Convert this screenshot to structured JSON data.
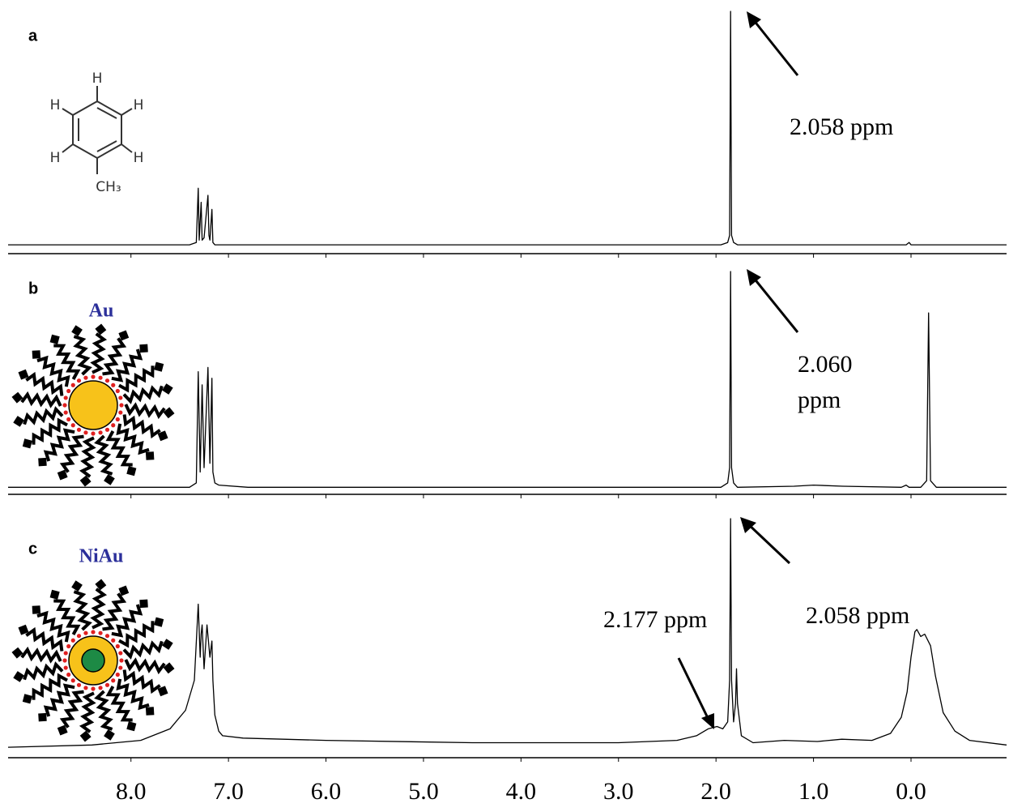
{
  "chart_data": [
    {
      "type": "line",
      "panel_label": "a",
      "molecule": {
        "atoms": [
          "H",
          "H",
          "H",
          "H",
          "H",
          "CH₃"
        ]
      },
      "annotations": [
        "2.058 ppm"
      ],
      "x": [
        9.26,
        7.4,
        7.33,
        7.31,
        7.3,
        7.28,
        7.27,
        7.25,
        7.21,
        7.2,
        7.19,
        7.17,
        7.16,
        7.14,
        7.1,
        1.95,
        1.88,
        1.86,
        1.85,
        1.84,
        1.82,
        1.78,
        0.05,
        0.02,
        0.0,
        -0.98
      ],
      "series": [
        {
          "color": "#000000",
          "values": [
            1,
            1,
            2,
            25,
            3,
            19,
            3,
            4,
            22,
            5,
            3,
            16,
            2,
            1,
            1,
            1,
            2,
            5,
            100,
            5,
            2,
            1,
            1,
            2,
            1,
            1
          ]
        }
      ],
      "xlim": [
        9.26,
        -0.98
      ],
      "ylim": [
        0,
        100
      ]
    },
    {
      "type": "line",
      "panel_label": "b",
      "particle_label": "Au",
      "annotations": [
        "2.060 ppm"
      ],
      "x": [
        9.26,
        7.4,
        7.33,
        7.31,
        7.29,
        7.27,
        7.25,
        7.21,
        7.19,
        7.17,
        7.16,
        7.14,
        7.1,
        6.8,
        1.95,
        1.88,
        1.86,
        1.85,
        1.84,
        1.82,
        1.78,
        1.2,
        1.0,
        0.7,
        0.1,
        0.05,
        0.02,
        -0.1,
        -0.16,
        -0.18,
        -0.2,
        -0.26,
        -0.98
      ],
      "series": [
        {
          "color": "#000000",
          "values": [
            1,
            1,
            3,
            54,
            8,
            48,
            10,
            56,
            12,
            51,
            8,
            3,
            2,
            1,
            1,
            3,
            10,
            100,
            10,
            3,
            1,
            1.5,
            2,
            1.5,
            1,
            2,
            1,
            1,
            4,
            81,
            4,
            1,
            1
          ]
        }
      ],
      "xlim": [
        9.26,
        -0.98
      ],
      "ylim": [
        0,
        100
      ]
    },
    {
      "type": "line",
      "panel_label": "c",
      "particle_label": "NiAu",
      "annotations": [
        "2.177 ppm",
        "2.058 ppm"
      ],
      "x": [
        9.26,
        8.4,
        7.9,
        7.6,
        7.44,
        7.35,
        7.31,
        7.29,
        7.28,
        7.27,
        7.25,
        7.22,
        7.19,
        7.17,
        7.16,
        7.14,
        7.1,
        7.06,
        6.85,
        6.0,
        4.5,
        3.0,
        2.4,
        2.2,
        2.08,
        1.99,
        1.93,
        1.88,
        1.86,
        1.85,
        1.84,
        1.82,
        1.8,
        1.79,
        1.78,
        1.74,
        1.62,
        1.3,
        0.96,
        0.71,
        0.4,
        0.21,
        0.1,
        0.04,
        0.0,
        -0.04,
        -0.06,
        -0.1,
        -0.14,
        -0.2,
        -0.25,
        -0.33,
        -0.45,
        -0.6,
        -0.98
      ],
      "series": [
        {
          "color": "#000000",
          "values": [
            1,
            2,
            4,
            9,
            17,
            30,
            63,
            40,
            50,
            54,
            35,
            54,
            40,
            47,
            30,
            15,
            8,
            6,
            5,
            4,
            3,
            3,
            4,
            6,
            9,
            10,
            9,
            12,
            30,
            100,
            30,
            12,
            20,
            35,
            20,
            6,
            3,
            4,
            3.5,
            4.5,
            4,
            7,
            14,
            25,
            40,
            51,
            52,
            49,
            50,
            45,
            32,
            16,
            8,
            4,
            2
          ]
        }
      ],
      "xlim": [
        9.26,
        -0.98
      ],
      "ylim": [
        0,
        100
      ],
      "xticks": [
        {
          "value": 8,
          "label": "8.0"
        },
        {
          "value": 7,
          "label": "7.0"
        },
        {
          "value": 6,
          "label": "6.0"
        },
        {
          "value": 5,
          "label": "5.0"
        },
        {
          "value": 4,
          "label": "4.0"
        },
        {
          "value": 3,
          "label": "3.0"
        },
        {
          "value": 2,
          "label": "2.0"
        },
        {
          "value": 1,
          "label": "1.0"
        },
        {
          "value": 0,
          "label": "0.0"
        }
      ]
    }
  ]
}
